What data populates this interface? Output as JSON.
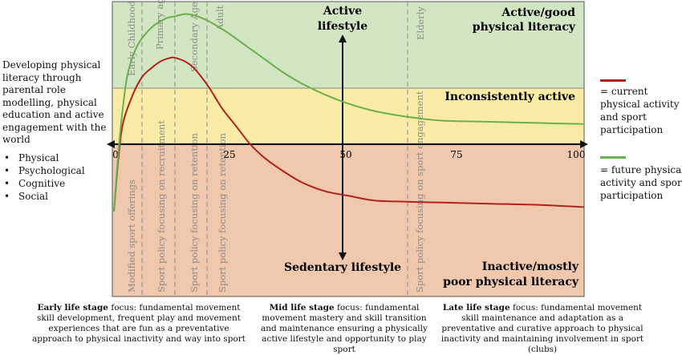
{
  "left_panel": {
    "intro": "Developing physical literacy through parental role modelling, physical education and active engagement with the world",
    "items": [
      "Physical",
      "Psychological",
      "Cognitive",
      "Social"
    ]
  },
  "zones": {
    "top": {
      "line1": "Active/good",
      "line2": "physical literacy",
      "color": "#d3e6c3"
    },
    "middle": {
      "label": "Inconsistently active",
      "color": "#faeca6"
    },
    "bottom": {
      "line1": "Inactive/mostly",
      "line2": "poor physical literacy",
      "color": "#efc8ad"
    }
  },
  "axis_labels": {
    "active_line1": "Active",
    "active_line2": "lifestyle",
    "sedentary": "Sedentary lifestyle"
  },
  "x_ticks": [
    "0",
    "25",
    "50",
    "75",
    "100"
  ],
  "stages_top": [
    "Early Childhood",
    "Primary age",
    "Secondary Age",
    "Adult",
    "Elderly"
  ],
  "policies_bottom": [
    "Modified sport offerings",
    "Sport policy focusing on recruitment",
    "Sport policy focusing on retention",
    "Sport policy focusing on retention",
    "Sport policy focusing on sport engagement"
  ],
  "legend": [
    {
      "label": "= current physical activity and sport participation",
      "color": "#b0231a"
    },
    {
      "label": "= future physical activity and sport participation",
      "color": "#6ab04c"
    }
  ],
  "bottom_notes": [
    {
      "bold": "Early life stage",
      "text": " focus: fundamental movement skill development, frequent play and movement experiences that are fun as a preventative approach to physical inactivity and way into sport"
    },
    {
      "bold": "Mid life stage",
      "text": " focus: fundamental movement mastery and skill transition and maintenance ensuring a physically active lifestyle and opportunity to play sport"
    },
    {
      "bold": "Late life stage",
      "text": " focus: fundamental movement skill maintenance and adaptation as a preventative and curative approach to physical inactivity and maintaining involvement in sport (clubs)"
    }
  ],
  "chart_data": {
    "type": "line",
    "x_range": [
      0,
      100
    ],
    "series": [
      {
        "name": "= current physical activity and sport participation",
        "color": "#b0231a",
        "points": [
          [
            0,
            -30
          ],
          [
            1,
            -5
          ],
          [
            2,
            10
          ],
          [
            4,
            22
          ],
          [
            6,
            30
          ],
          [
            8,
            34
          ],
          [
            10,
            37
          ],
          [
            12,
            38.5
          ],
          [
            13,
            38.5
          ],
          [
            15,
            37
          ],
          [
            17,
            34
          ],
          [
            20,
            26
          ],
          [
            23,
            16
          ],
          [
            26,
            8
          ],
          [
            29,
            0
          ],
          [
            32,
            -6
          ],
          [
            36,
            -12
          ],
          [
            40,
            -17
          ],
          [
            45,
            -21
          ],
          [
            50,
            -23
          ],
          [
            55,
            -25
          ],
          [
            60,
            -25.5
          ],
          [
            70,
            -26
          ],
          [
            80,
            -26.5
          ],
          [
            90,
            -27
          ],
          [
            100,
            -28
          ]
        ]
      },
      {
        "name": "= future physical activity and sport participation",
        "color": "#6ab04c",
        "points": [
          [
            0,
            -30
          ],
          [
            1,
            -2
          ],
          [
            2,
            18
          ],
          [
            3,
            32
          ],
          [
            5,
            44
          ],
          [
            8,
            52
          ],
          [
            11,
            56
          ],
          [
            13,
            57
          ],
          [
            15,
            58
          ],
          [
            17,
            57.5
          ],
          [
            20,
            55
          ],
          [
            24,
            50
          ],
          [
            28,
            44
          ],
          [
            32,
            38
          ],
          [
            36,
            32
          ],
          [
            40,
            27
          ],
          [
            45,
            22
          ],
          [
            50,
            18
          ],
          [
            55,
            15
          ],
          [
            60,
            13
          ],
          [
            65,
            11.5
          ],
          [
            70,
            10.5
          ],
          [
            80,
            10
          ],
          [
            90,
            9.5
          ],
          [
            100,
            9
          ]
        ]
      }
    ]
  }
}
